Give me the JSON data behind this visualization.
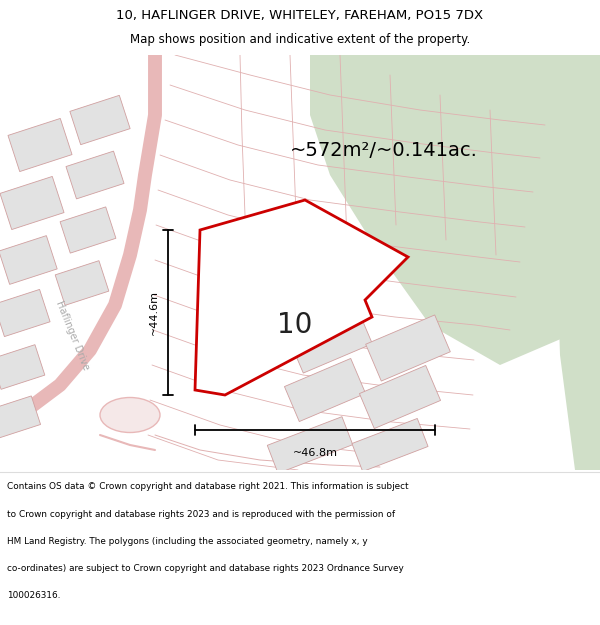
{
  "title_line1": "10, HAFLINGER DRIVE, WHITELEY, FAREHAM, PO15 7DX",
  "title_line2": "Map shows position and indicative extent of the property.",
  "area_text": "~572m²/~0.141ac.",
  "label_number": "10",
  "dim_vertical": "~44.6m",
  "dim_horizontal": "~46.8m",
  "footer_lines": [
    "Contains OS data © Crown copyright and database right 2021. This information is subject",
    "to Crown copyright and database rights 2023 and is reproduced with the permission of",
    "HM Land Registry. The polygons (including the associated geometry, namely x, y",
    "co-ordinates) are subject to Crown copyright and database rights 2023 Ordnance Survey",
    "100026316."
  ],
  "bg_map_color": "#f8f8f5",
  "bg_green_color": "#d0dfc8",
  "road_color": "#e8b8b8",
  "plot_line_color": "#e0b0b0",
  "highlight_color": "#cc0000",
  "building_fill": "#e2e2e2",
  "building_stroke": "#d0a0a0",
  "footer_bg": "#ffffff",
  "title_bg": "#ffffff",
  "road_fill": "#f5e8e8",
  "haflinger_label_color": "#aaaaaa"
}
